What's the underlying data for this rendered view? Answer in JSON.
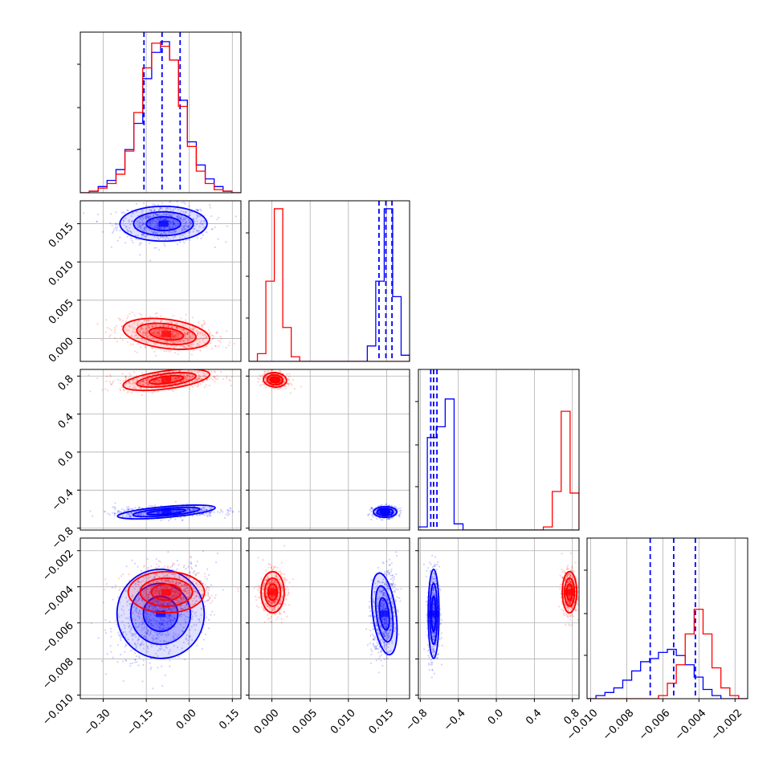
{
  "colors": {
    "series_a": "#0000ff",
    "series_b": "#ff0000",
    "grid": "#b0b0b0",
    "frame": "#000000"
  },
  "chart_data": {
    "type": "corner",
    "grid": true,
    "n_params": 4,
    "tick_labels": {
      "p0": [
        "−0.30",
        "−0.15",
        "0.00",
        "0.15"
      ],
      "p1": [
        "0.000",
        "0.005",
        "0.010",
        "0.015"
      ],
      "p2": [
        "−0.8",
        "−0.4",
        "0.0",
        "0.4",
        "0.8"
      ],
      "p3": [
        "−0.010",
        "−0.008",
        "−0.006",
        "−0.004",
        "−0.002"
      ]
    },
    "axes": {
      "p0": {
        "range": [
          -0.38,
          0.18
        ],
        "ticks": [
          -0.3,
          -0.15,
          0.0,
          0.15
        ]
      },
      "p1": {
        "range": [
          -0.003,
          0.018
        ],
        "ticks": [
          0.0,
          0.005,
          0.01,
          0.015
        ]
      },
      "p2": {
        "range": [
          -0.82,
          0.87
        ],
        "ticks": [
          -0.8,
          -0.4,
          0.0,
          0.4,
          0.8
        ]
      },
      "p3": {
        "range": [
          -0.0102,
          -0.0013
        ],
        "ticks": [
          -0.01,
          -0.008,
          -0.006,
          -0.004,
          -0.002
        ]
      }
    },
    "series": [
      {
        "color": "#0000ff",
        "quantile_lines": {
          "p0": [
            -0.158,
            -0.095,
            -0.032
          ],
          "p1": [
            0.014,
            0.0149,
            0.0157
          ],
          "p2": [
            -0.69,
            -0.66,
            -0.625
          ],
          "p3": [
            -0.0067,
            -0.0054,
            -0.0042
          ]
        },
        "hist": {
          "p0": [
            0,
            0.01,
            0.04,
            0.08,
            0.15,
            0.28,
            0.45,
            0.74,
            0.91,
            0.98,
            0.86,
            0.6,
            0.33,
            0.18,
            0.09,
            0.04,
            0.01,
            0
          ],
          "p1": [
            0,
            0,
            0,
            0,
            0,
            0,
            0,
            0,
            0,
            0,
            0,
            0,
            0,
            0,
            0.1,
            0.52,
            0.99,
            0.42,
            0.04
          ],
          "p2": [
            0.02,
            0.6,
            0.67,
            0.85,
            0.04,
            0,
            0,
            0,
            0,
            0,
            0,
            0,
            0,
            0,
            0,
            0,
            0,
            0
          ],
          "p3": [
            0,
            0.02,
            0.04,
            0.07,
            0.12,
            0.18,
            0.24,
            0.26,
            0.3,
            0.32,
            0.28,
            0.22,
            0.14,
            0.06,
            0.02,
            0,
            0,
            0
          ]
        }
      },
      {
        "color": "#ff0000",
        "quantile_lines": null,
        "hist": {
          "p0": [
            0,
            0.01,
            0.03,
            0.06,
            0.12,
            0.27,
            0.52,
            0.81,
            0.97,
            0.95,
            0.86,
            0.56,
            0.3,
            0.14,
            0.06,
            0.02,
            0.01,
            0
          ],
          "p1": [
            0,
            0.05,
            0.52,
            0.99,
            0.22,
            0.03,
            0,
            0,
            0,
            0,
            0,
            0,
            0,
            0,
            0,
            0,
            0,
            0,
            0
          ],
          "p2": [
            0,
            0,
            0,
            0,
            0,
            0,
            0,
            0,
            0,
            0,
            0,
            0,
            0,
            0,
            0.02,
            0.25,
            0.77,
            0.24
          ],
          "p3": [
            0,
            0,
            0,
            0,
            0,
            0,
            0,
            0,
            0.02,
            0.1,
            0.22,
            0.42,
            0.58,
            0.42,
            0.2,
            0.07,
            0.02,
            0
          ]
        }
      }
    ],
    "clouds": [
      {
        "row": 1,
        "col": 0,
        "color": "#0000ff",
        "cx": -0.09,
        "cy": 0.015,
        "sx": 0.08,
        "sy": 0.0012,
        "rho": 0.0,
        "n": 700
      },
      {
        "row": 1,
        "col": 0,
        "color": "#ff0000",
        "cx": -0.08,
        "cy": 0.0006,
        "sx": 0.08,
        "sy": 0.001,
        "rho": -0.3,
        "n": 700
      },
      {
        "row": 2,
        "col": 0,
        "color": "#ff0000",
        "cx": -0.08,
        "cy": 0.76,
        "sx": 0.08,
        "sy": 0.05,
        "rho": 0.3,
        "n": 700
      },
      {
        "row": 2,
        "col": 0,
        "color": "#0000ff",
        "cx": -0.08,
        "cy": -0.63,
        "sx": 0.09,
        "sy": 0.03,
        "rho": 0.2,
        "n": 700
      },
      {
        "row": 2,
        "col": 1,
        "color": "#ff0000",
        "cx": 0.0004,
        "cy": 0.76,
        "sx": 0.0008,
        "sy": 0.04,
        "rho": -0.2,
        "n": 500
      },
      {
        "row": 2,
        "col": 1,
        "color": "#0000ff",
        "cx": 0.0148,
        "cy": -0.63,
        "sx": 0.0008,
        "sy": 0.03,
        "rho": 0.0,
        "n": 500
      },
      {
        "row": 3,
        "col": 0,
        "color": "#0000ff",
        "cx": -0.1,
        "cy": -0.0055,
        "sx": 0.08,
        "sy": 0.0013,
        "rho": 0.4,
        "n": 900
      },
      {
        "row": 3,
        "col": 0,
        "color": "#ff0000",
        "cx": -0.08,
        "cy": -0.0043,
        "sx": 0.07,
        "sy": 0.0006,
        "rho": 0.0,
        "n": 700
      },
      {
        "row": 3,
        "col": 1,
        "color": "#ff0000",
        "cx": 0.0001,
        "cy": -0.0043,
        "sx": 0.0008,
        "sy": 0.0006,
        "rho": 0.0,
        "n": 600
      },
      {
        "row": 3,
        "col": 1,
        "color": "#0000ff",
        "cx": 0.0147,
        "cy": -0.0055,
        "sx": 0.0008,
        "sy": 0.0012,
        "rho": 0.3,
        "n": 600
      },
      {
        "row": 3,
        "col": 2,
        "color": "#0000ff",
        "cx": -0.66,
        "cy": -0.0055,
        "sx": 0.03,
        "sy": 0.0013,
        "rho": 0.0,
        "n": 600
      },
      {
        "row": 3,
        "col": 2,
        "color": "#ff0000",
        "cx": 0.77,
        "cy": -0.0043,
        "sx": 0.04,
        "sy": 0.0006,
        "rho": 0.0,
        "n": 600
      }
    ]
  }
}
